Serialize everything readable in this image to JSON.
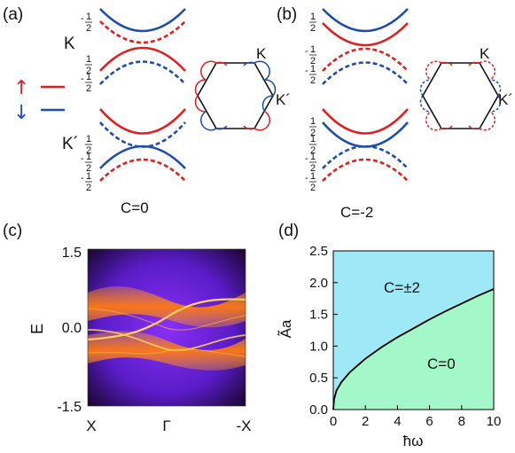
{
  "panel_labels": {
    "a": "(a)",
    "b": "(b)",
    "c": "(c)",
    "d": "(d)"
  },
  "panel_a": {
    "valley_top": "K",
    "valley_bottom": "K´",
    "half": "1",
    "half_den": "2",
    "neg_half": "-",
    "chern": "C=0",
    "hex_k": "K",
    "hex_kp": "K´"
  },
  "panel_b": {
    "chern": "C=-2",
    "hex_k": "K",
    "hex_kp": "K´"
  },
  "legend": {
    "up_arrow": "↑",
    "down_arrow": "↓"
  },
  "colors": {
    "spin_up": "#e02020",
    "spin_down": "#1f4ea8",
    "tint_blue": "#9ee8f7",
    "tint_green": "#a4f7c8",
    "hole_bg": "#7b2cf0"
  },
  "chart_data": [
    {
      "type": "heatmap",
      "panel": "c",
      "ylabel": "E",
      "yticks": [
        "1.5",
        "0.0",
        "-1.5"
      ],
      "xticks": [
        "X",
        "Γ",
        "-X"
      ],
      "ylim": [
        -1.5,
        1.5
      ]
    },
    {
      "type": "line",
      "panel": "d",
      "xlabel": "ħω",
      "ylabel": "Ãa",
      "xlim": [
        0,
        10
      ],
      "ylim": [
        0,
        2.5
      ],
      "xticks": [
        "0",
        "2",
        "4",
        "6",
        "8",
        "10"
      ],
      "yticks": [
        "0.0",
        "0.5",
        "1.0",
        "1.5",
        "2.0",
        "2.5"
      ],
      "x": [
        0,
        0.05,
        0.2,
        0.5,
        1,
        1.5,
        2,
        3,
        4,
        5,
        6,
        7,
        8,
        9,
        10
      ],
      "y": [
        0,
        0.16,
        0.3,
        0.43,
        0.58,
        0.69,
        0.8,
        0.98,
        1.14,
        1.28,
        1.42,
        1.55,
        1.67,
        1.79,
        1.9
      ],
      "regions": [
        {
          "label": "C=±2",
          "position": "above-curve"
        },
        {
          "label": "C=0",
          "position": "below-curve"
        }
      ]
    }
  ]
}
